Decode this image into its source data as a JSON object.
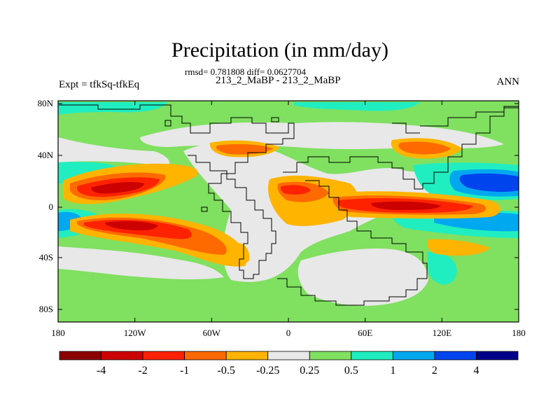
{
  "header": {
    "title": "Precipitation (in mm/day)",
    "stats": "rmsd= 0.781808 diff= 0.0627704",
    "subtitle": "213_2_MaBP - 213_2_MaBP",
    "left_label": "Expt = tfkSq-tfkEq",
    "right_label": "ANN"
  },
  "map": {
    "lat_ticks": [
      "80N",
      "40N",
      "0",
      "40S",
      "80S"
    ],
    "lon_ticks": [
      "180",
      "120W",
      "60W",
      "0",
      "60E",
      "120E",
      "180"
    ]
  },
  "colorbar": {
    "colors": [
      "#8b0000",
      "#cc0000",
      "#ff2200",
      "#ff6a00",
      "#ffb400",
      "#e8e8e8",
      "#80e060",
      "#20eec0",
      "#00a8f0",
      "#0044ee",
      "#000088"
    ],
    "labels": [
      "-4",
      "-2",
      "-1",
      "-0.5",
      "-0.25",
      "0.25",
      "0.5",
      "1",
      "2",
      "4"
    ]
  },
  "legend_colors": {
    "strong_negative": "#8b0000",
    "negative": "#ff2200",
    "weak_negative": "#ffb400",
    "near_zero": "#e8e8e8",
    "weak_positive": "#80e060",
    "positive": "#20eec0",
    "strong_positive": "#0044ee"
  }
}
